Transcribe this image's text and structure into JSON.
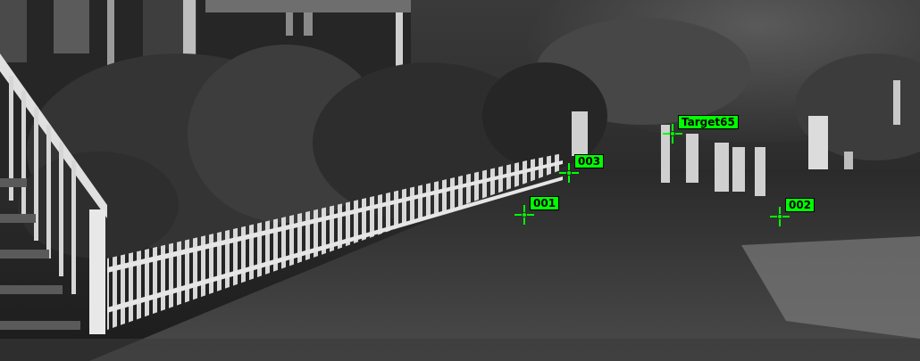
{
  "scene": {
    "description_icon": "point-cloud-scan",
    "marker_color": "#00ff00",
    "label_text_color": "#000000"
  },
  "targets": [
    {
      "id": "target65",
      "label": "Target65"
    },
    {
      "id": "003",
      "label": "003"
    },
    {
      "id": "001",
      "label": "001"
    },
    {
      "id": "002",
      "label": "002"
    }
  ]
}
